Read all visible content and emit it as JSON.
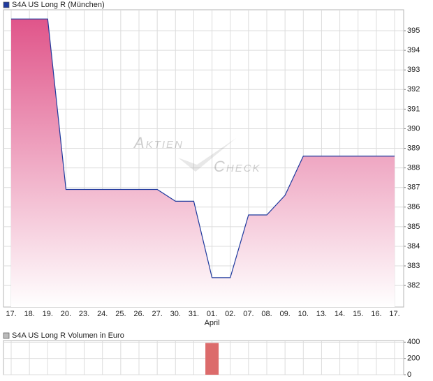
{
  "chart_data": [
    {
      "type": "area",
      "legend": "S4A US Long R (München)",
      "color": "#1f3a9e",
      "fill_top": "#e0558a",
      "categories": [
        "17.",
        "18.",
        "19.",
        "20.",
        "23.",
        "24.",
        "25.",
        "26.",
        "27.",
        "30.",
        "31.",
        "01.",
        "02.",
        "07.",
        "08.",
        "09.",
        "10.",
        "13.",
        "14.",
        "15.",
        "16.",
        "17."
      ],
      "values": [
        395.6,
        395.6,
        395.6,
        386.9,
        386.9,
        386.9,
        386.9,
        386.9,
        386.9,
        386.3,
        386.3,
        382.4,
        382.4,
        385.6,
        385.6,
        386.6,
        388.6,
        388.6,
        388.6,
        388.6,
        388.6,
        388.6
      ],
      "annotations": [
        {
          "text": "April",
          "at": 11
        }
      ],
      "watermark": [
        "Aktien",
        "Check"
      ],
      "ylim": [
        380.9,
        396.07
      ],
      "yticks": [
        382,
        383,
        384,
        385,
        386,
        387,
        388,
        389,
        390,
        391,
        392,
        393,
        394,
        395
      ],
      "grid": true
    },
    {
      "type": "bar",
      "legend": "S4A US Long R Volumen in Euro",
      "color": "#dc6b6b",
      "values": [
        0,
        0,
        0,
        0,
        0,
        0,
        0,
        0,
        0,
        0,
        0,
        390,
        0,
        0,
        0,
        0,
        0,
        0,
        0,
        0,
        0,
        0
      ],
      "ylim": [
        0,
        420
      ],
      "yticks": [
        0,
        200,
        400
      ],
      "grid": true
    }
  ]
}
